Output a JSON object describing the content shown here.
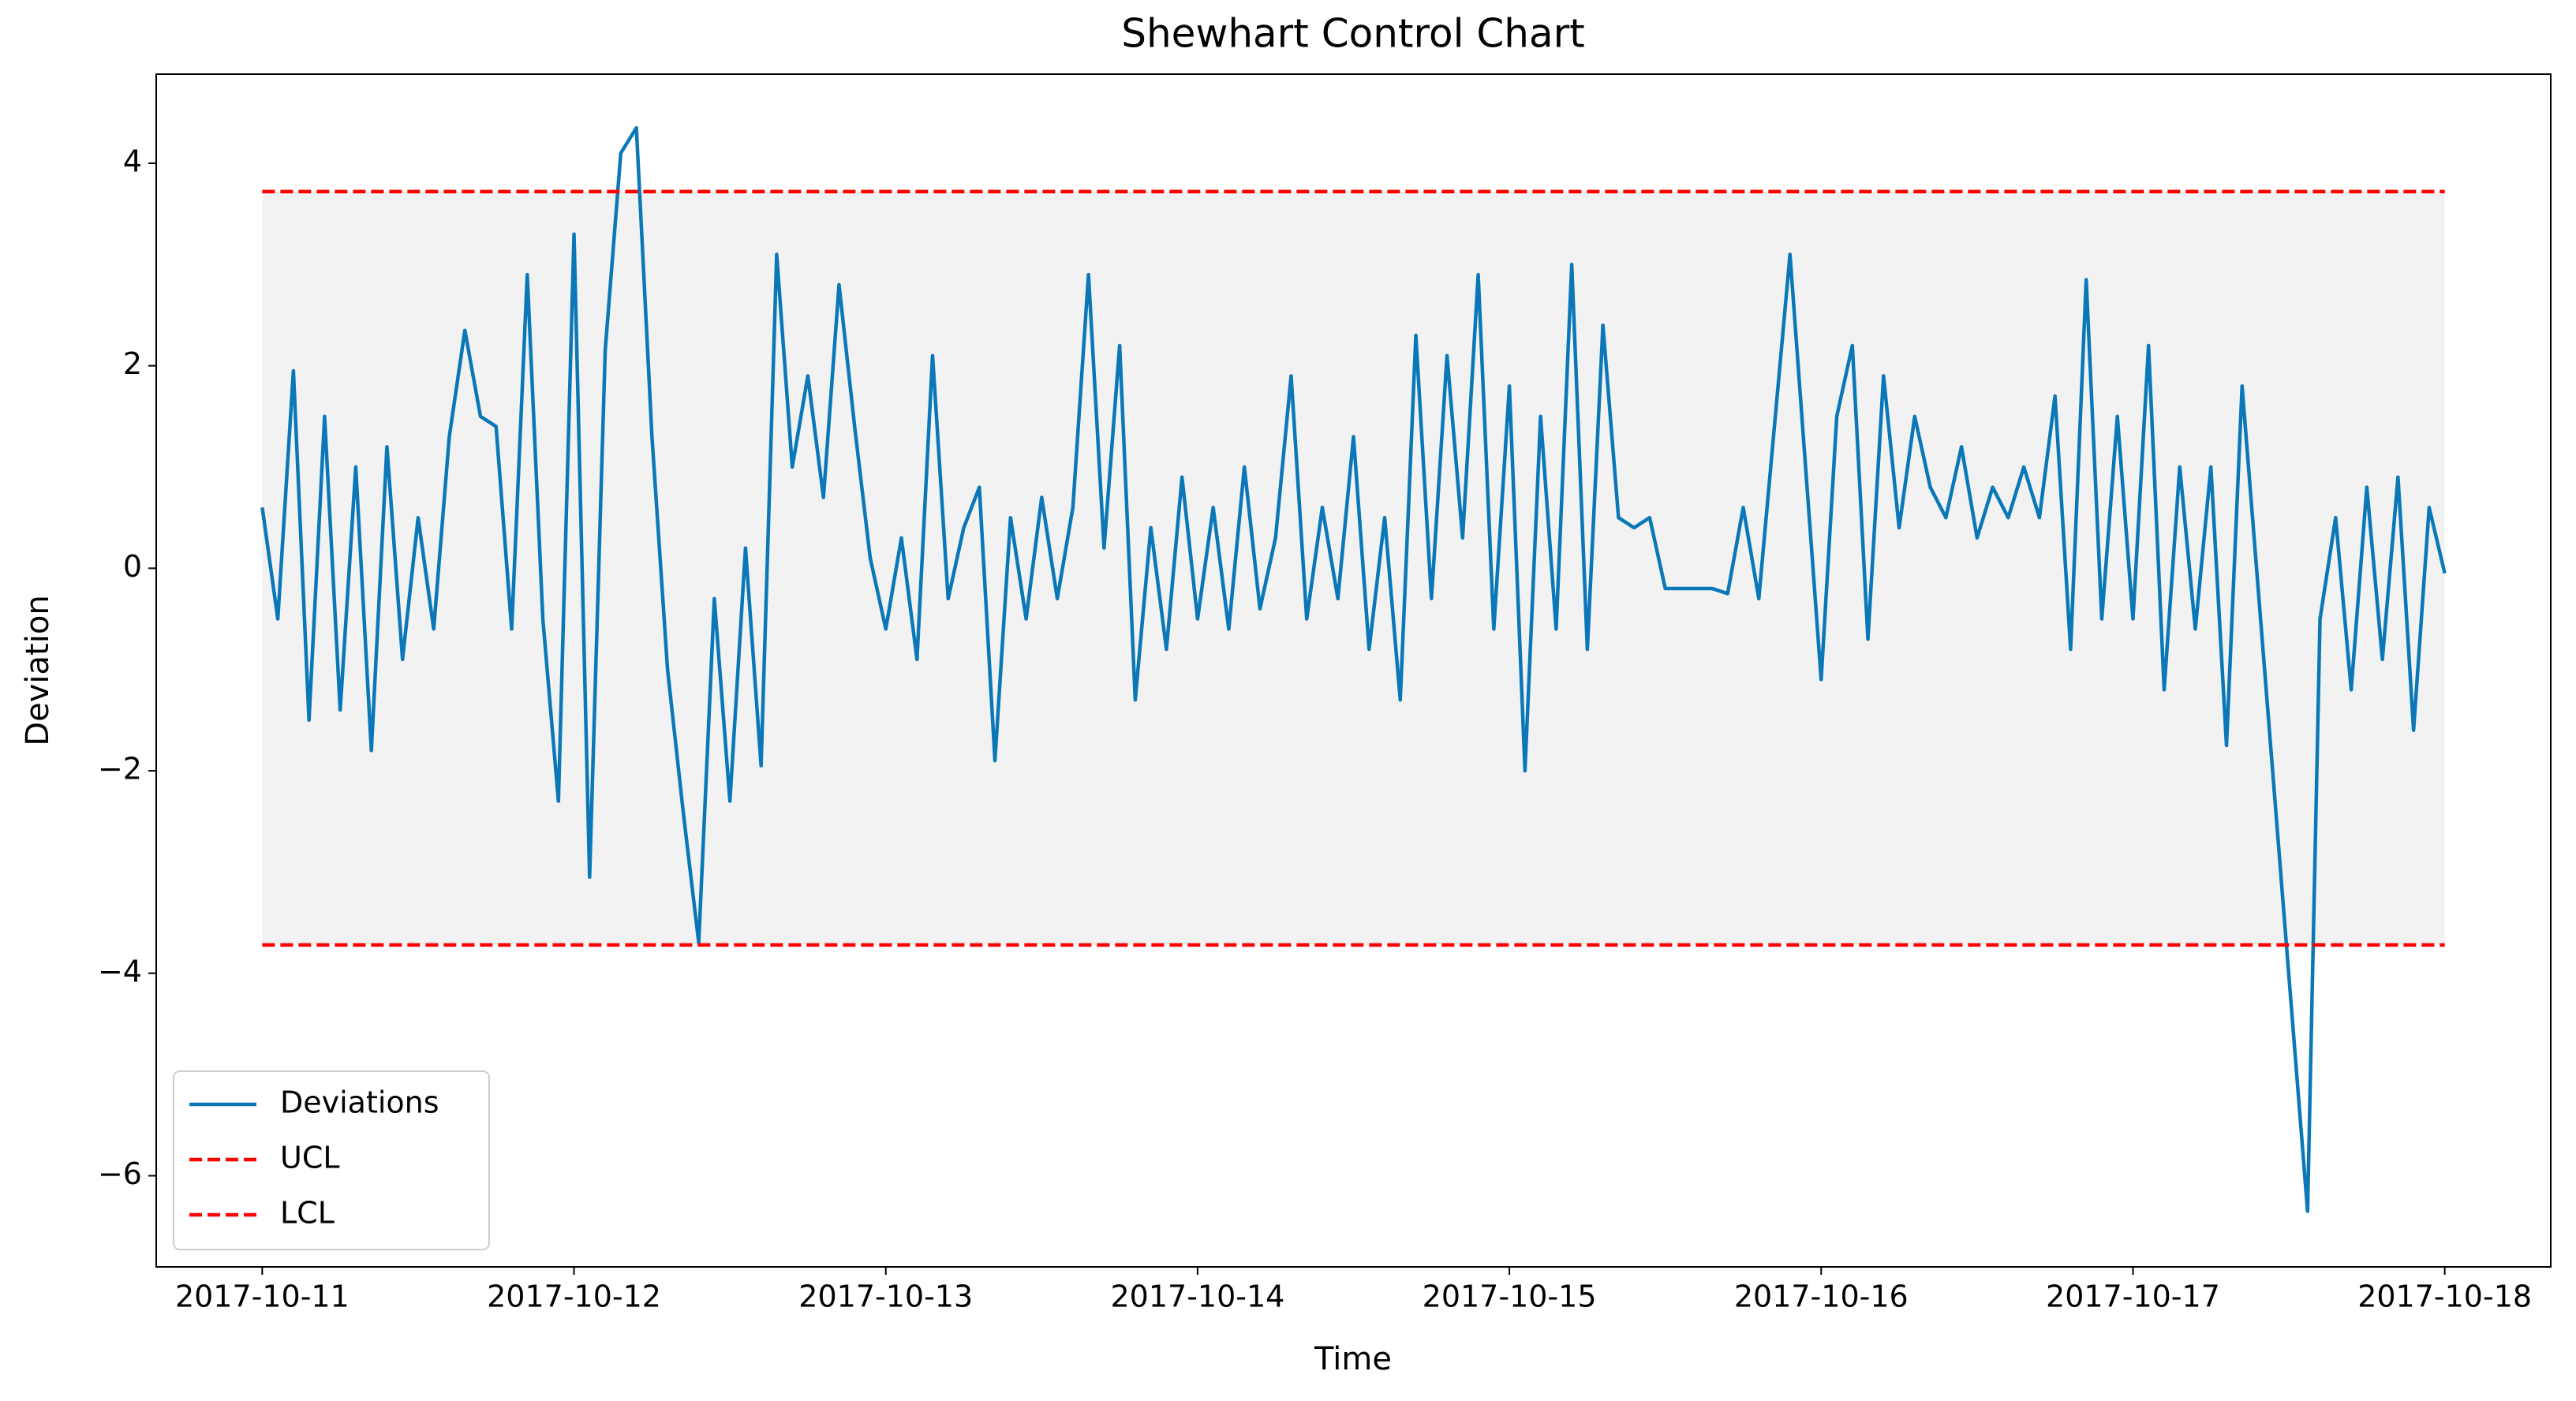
{
  "chart_data": {
    "type": "line",
    "title": "Shewhart Control Chart",
    "xlabel": "Time",
    "ylabel": "Deviation",
    "x": [
      0,
      0.05,
      0.1,
      0.15,
      0.2,
      0.25,
      0.3,
      0.35,
      0.4,
      0.45,
      0.5,
      0.55,
      0.6,
      0.65,
      0.7,
      0.75,
      0.8,
      0.85,
      0.9,
      0.95,
      1,
      1.05,
      1.1,
      1.15,
      1.2,
      1.25,
      1.3,
      1.35,
      1.4,
      1.45,
      1.5,
      1.55,
      1.6,
      1.65,
      1.7,
      1.75,
      1.8,
      1.85,
      1.9,
      1.95,
      2,
      2.05,
      2.1,
      2.15,
      2.2,
      2.25,
      2.3,
      2.35,
      2.4,
      2.45,
      2.5,
      2.55,
      2.6,
      2.65,
      2.7,
      2.75,
      2.8,
      2.85,
      2.9,
      2.95,
      3,
      3.05,
      3.1,
      3.15,
      3.2,
      3.25,
      3.3,
      3.35,
      3.4,
      3.45,
      3.5,
      3.55,
      3.6,
      3.65,
      3.7,
      3.75,
      3.8,
      3.85,
      3.9,
      3.95,
      4,
      4.05,
      4.1,
      4.15,
      4.2,
      4.25,
      4.3,
      4.35,
      4.4,
      4.45,
      4.5,
      4.55,
      4.6,
      4.65,
      4.7,
      4.75,
      4.8,
      4.85,
      4.9,
      4.95,
      5,
      5.05,
      5.1,
      5.15,
      5.2,
      5.25,
      5.3,
      5.35,
      5.4,
      5.45,
      5.5,
      5.55,
      5.6,
      5.65,
      5.7,
      5.75,
      5.8,
      5.85,
      5.9,
      5.95,
      6,
      6.05,
      6.1,
      6.15,
      6.2,
      6.25,
      6.3,
      6.35,
      6.56,
      6.6,
      6.65,
      6.7,
      6.75,
      6.8,
      6.85,
      6.9,
      6.95,
      7
    ],
    "series": [
      {
        "name": "Deviations",
        "color": "#0a78b8",
        "values": [
          0.6,
          -0.5,
          1.95,
          -1.5,
          1.5,
          -1.4,
          1.0,
          -1.8,
          1.2,
          -0.9,
          0.5,
          -0.6,
          1.3,
          2.35,
          1.5,
          1.4,
          -0.6,
          2.9,
          -0.5,
          -2.3,
          3.3,
          -3.05,
          2.15,
          4.1,
          4.35,
          1.3,
          -1.0,
          -2.4,
          -3.7,
          -0.3,
          -2.3,
          0.2,
          -1.95,
          3.1,
          1.0,
          1.9,
          0.7,
          2.8,
          1.4,
          0.1,
          -0.6,
          0.3,
          -0.9,
          2.1,
          -0.3,
          0.4,
          0.8,
          -1.9,
          0.5,
          -0.5,
          0.7,
          -0.3,
          0.6,
          2.9,
          0.2,
          2.2,
          -1.3,
          0.4,
          -0.8,
          0.9,
          -0.5,
          0.6,
          -0.6,
          1.0,
          -0.4,
          0.3,
          1.9,
          -0.5,
          0.6,
          -0.3,
          1.3,
          -0.8,
          0.5,
          -1.3,
          2.3,
          -0.3,
          2.1,
          0.3,
          2.9,
          -0.6,
          1.8,
          -2.0,
          1.5,
          -0.6,
          3.0,
          -0.8,
          2.4,
          0.5,
          0.4,
          0.5,
          -0.2,
          -0.2,
          -0.2,
          -0.2,
          -0.25,
          0.6,
          -0.3,
          1.4,
          3.1,
          1.0,
          -1.1,
          1.5,
          2.2,
          -0.7,
          1.9,
          0.4,
          1.5,
          0.8,
          0.5,
          1.2,
          0.3,
          0.8,
          0.5,
          1.0,
          0.5,
          1.7,
          -0.8,
          2.85,
          -0.5,
          1.5,
          -0.5,
          2.2,
          -1.2,
          1.0,
          -0.6,
          1.0,
          -1.75,
          1.8,
          -6.35,
          -0.5,
          0.5,
          -1.2,
          0.8,
          -0.9,
          0.9,
          -1.6,
          0.6,
          -0.05
        ]
      }
    ],
    "control_limits": [
      {
        "name": "UCL",
        "value": 3.72,
        "color": "#ff0000"
      },
      {
        "name": "LCL",
        "value": -3.72,
        "color": "#ff0000"
      }
    ],
    "band_color": "#f2f2f2",
    "xlim": [
      -0.34,
      7.34
    ],
    "xticks": [
      {
        "value": 0,
        "label": "2017-10-11"
      },
      {
        "value": 1,
        "label": "2017-10-12"
      },
      {
        "value": 2,
        "label": "2017-10-13"
      },
      {
        "value": 3,
        "label": "2017-10-14"
      },
      {
        "value": 4,
        "label": "2017-10-15"
      },
      {
        "value": 5,
        "label": "2017-10-16"
      },
      {
        "value": 6,
        "label": "2017-10-17"
      },
      {
        "value": 7,
        "label": "2017-10-18"
      }
    ],
    "ylim": [
      -6.9,
      4.88
    ],
    "yticks": [
      {
        "value": -6,
        "label": "−6"
      },
      {
        "value": -4,
        "label": "−4"
      },
      {
        "value": -2,
        "label": "−2"
      },
      0,
      2,
      4
    ],
    "legend": "lower left"
  }
}
